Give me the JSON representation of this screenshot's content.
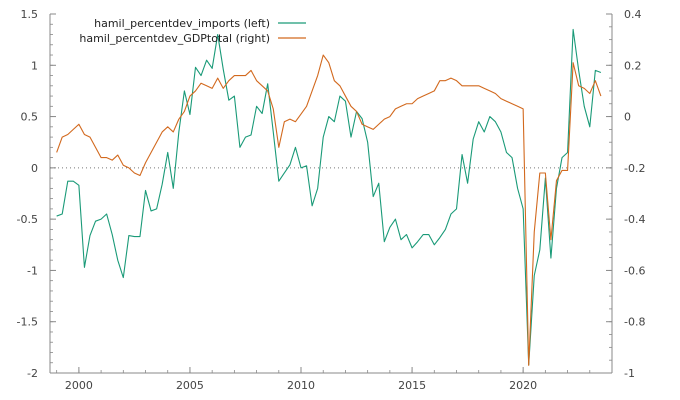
{
  "chart_data": {
    "type": "line",
    "title": "",
    "xlabel": "",
    "ylabel_left": "",
    "ylabel_right": "",
    "x_ticks": [
      "2000",
      "2005",
      "2010",
      "2015",
      "2020"
    ],
    "y_left_ticks": [
      "-2",
      "-1.5",
      "-1",
      "-0.5",
      "0",
      "0.5",
      "1",
      "1.5"
    ],
    "y_right_ticks": [
      "-1",
      "-0.8",
      "-0.6",
      "-0.4",
      "-0.2",
      "0",
      "0.2",
      "0.4"
    ],
    "xlim": [
      1998.7,
      2024.0
    ],
    "ylim_left": [
      -2,
      1.5
    ],
    "ylim_right": [
      -1,
      0.4
    ],
    "grid": false,
    "zero_line": "dotted",
    "legend_position": "top-left",
    "series": [
      {
        "name": "hamil_percentdev_imports (left)",
        "axis": "left",
        "color": "#1a9a78",
        "x": [
          1999.0,
          1999.25,
          1999.5,
          1999.75,
          2000.0,
          2000.25,
          2000.5,
          2000.75,
          2001.0,
          2001.25,
          2001.5,
          2001.75,
          2002.0,
          2002.25,
          2002.5,
          2002.75,
          2003.0,
          2003.25,
          2003.5,
          2003.75,
          2004.0,
          2004.25,
          2004.5,
          2004.75,
          2005.0,
          2005.25,
          2005.5,
          2005.75,
          2006.0,
          2006.25,
          2006.5,
          2006.75,
          2007.0,
          2007.25,
          2007.5,
          2007.75,
          2008.0,
          2008.25,
          2008.5,
          2008.75,
          2009.0,
          2009.25,
          2009.5,
          2009.75,
          2010.0,
          2010.25,
          2010.5,
          2010.75,
          2011.0,
          2011.25,
          2011.5,
          2011.75,
          2012.0,
          2012.25,
          2012.5,
          2012.75,
          2013.0,
          2013.25,
          2013.5,
          2013.75,
          2014.0,
          2014.25,
          2014.5,
          2014.75,
          2015.0,
          2015.25,
          2015.5,
          2015.75,
          2016.0,
          2016.25,
          2016.5,
          2016.75,
          2017.0,
          2017.25,
          2017.5,
          2017.75,
          2018.0,
          2018.25,
          2018.5,
          2018.75,
          2019.0,
          2019.25,
          2019.5,
          2019.75,
          2020.0,
          2020.25,
          2020.5,
          2020.75,
          2021.0,
          2021.25,
          2021.5,
          2021.75,
          2022.0,
          2022.25,
          2022.5,
          2022.75,
          2023.0,
          2023.25,
          2023.5
        ],
        "values": [
          -0.47,
          -0.45,
          -0.13,
          -0.13,
          -0.17,
          -0.97,
          -0.66,
          -0.52,
          -0.5,
          -0.45,
          -0.65,
          -0.9,
          -1.07,
          -0.66,
          -0.67,
          -0.67,
          -0.22,
          -0.42,
          -0.4,
          -0.16,
          0.15,
          -0.2,
          0.35,
          0.75,
          0.52,
          0.98,
          0.9,
          1.05,
          0.97,
          1.3,
          0.96,
          0.66,
          0.7,
          0.2,
          0.3,
          0.32,
          0.6,
          0.53,
          0.82,
          0.35,
          -0.13,
          -0.05,
          0.03,
          0.2,
          0.0,
          0.02,
          -0.37,
          -0.2,
          0.3,
          0.5,
          0.45,
          0.7,
          0.65,
          0.3,
          0.55,
          0.48,
          0.25,
          -0.28,
          -0.15,
          -0.72,
          -0.58,
          -0.5,
          -0.7,
          -0.65,
          -0.78,
          -0.72,
          -0.65,
          -0.65,
          -0.75,
          -0.68,
          -0.6,
          -0.45,
          -0.4,
          0.13,
          -0.15,
          0.28,
          0.45,
          0.35,
          0.5,
          0.45,
          0.35,
          0.15,
          0.1,
          -0.2,
          -0.4,
          -1.92,
          -1.05,
          -0.8,
          -0.1,
          -0.88,
          -0.2,
          0.1,
          0.15,
          1.35,
          0.95,
          0.6,
          0.4,
          0.95,
          0.93
        ]
      },
      {
        "name": "hamil_percentdev_GDPtotal (right)",
        "axis": "right",
        "color": "#d2691e",
        "x": [
          1999.0,
          1999.25,
          1999.5,
          1999.75,
          2000.0,
          2000.25,
          2000.5,
          2000.75,
          2001.0,
          2001.25,
          2001.5,
          2001.75,
          2002.0,
          2002.25,
          2002.5,
          2002.75,
          2003.0,
          2003.25,
          2003.5,
          2003.75,
          2004.0,
          2004.25,
          2004.5,
          2004.75,
          2005.0,
          2005.25,
          2005.5,
          2005.75,
          2006.0,
          2006.25,
          2006.5,
          2006.75,
          2007.0,
          2007.25,
          2007.5,
          2007.75,
          2008.0,
          2008.25,
          2008.5,
          2008.75,
          2009.0,
          2009.25,
          2009.5,
          2009.75,
          2010.0,
          2010.25,
          2010.5,
          2010.75,
          2011.0,
          2011.25,
          2011.5,
          2011.75,
          2012.0,
          2012.25,
          2012.5,
          2012.75,
          2013.0,
          2013.25,
          2013.5,
          2013.75,
          2014.0,
          2014.25,
          2014.5,
          2014.75,
          2015.0,
          2015.25,
          2015.5,
          2015.75,
          2016.0,
          2016.25,
          2016.5,
          2016.75,
          2017.0,
          2017.25,
          2017.5,
          2017.75,
          2018.0,
          2018.25,
          2018.5,
          2018.75,
          2019.0,
          2019.25,
          2019.5,
          2019.75,
          2020.0,
          2020.25,
          2020.5,
          2020.75,
          2021.0,
          2021.25,
          2021.5,
          2021.75,
          2022.0,
          2022.25,
          2022.5,
          2022.75,
          2023.0,
          2023.25,
          2023.5
        ],
        "values": [
          -0.14,
          -0.08,
          -0.07,
          -0.05,
          -0.03,
          -0.07,
          -0.08,
          -0.12,
          -0.16,
          -0.16,
          -0.17,
          -0.15,
          -0.19,
          -0.2,
          -0.22,
          -0.23,
          -0.18,
          -0.14,
          -0.1,
          -0.06,
          -0.04,
          -0.06,
          -0.01,
          0.02,
          0.08,
          0.1,
          0.13,
          0.12,
          0.11,
          0.15,
          0.11,
          0.14,
          0.16,
          0.16,
          0.16,
          0.18,
          0.14,
          0.12,
          0.1,
          0.03,
          -0.12,
          -0.02,
          -0.01,
          -0.02,
          0.01,
          0.04,
          0.1,
          0.16,
          0.24,
          0.21,
          0.14,
          0.12,
          0.08,
          0.04,
          0.02,
          -0.03,
          -0.04,
          -0.05,
          -0.03,
          -0.01,
          0.0,
          0.03,
          0.04,
          0.05,
          0.05,
          0.07,
          0.08,
          0.09,
          0.1,
          0.14,
          0.14,
          0.15,
          0.14,
          0.12,
          0.12,
          0.12,
          0.12,
          0.11,
          0.1,
          0.09,
          0.07,
          0.06,
          0.05,
          0.04,
          0.03,
          -0.97,
          -0.45,
          -0.22,
          -0.22,
          -0.48,
          -0.25,
          -0.21,
          -0.21,
          0.21,
          0.12,
          0.11,
          0.09,
          0.14,
          0.08
        ]
      }
    ]
  }
}
